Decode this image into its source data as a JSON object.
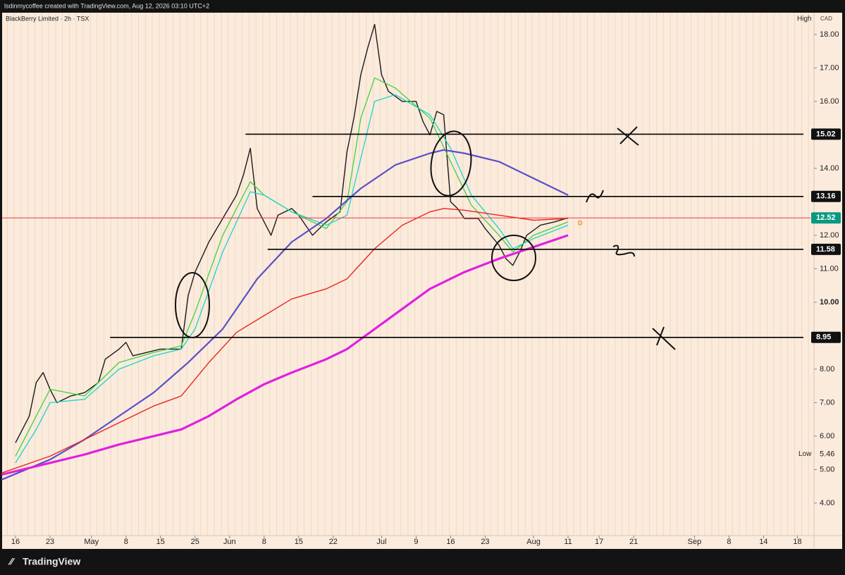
{
  "header": "lsdinmycoffee created with TradingView.com, Aug 12, 2026 03:10 UTC+2",
  "footer": "TradingView",
  "chart_data": {
    "type": "line",
    "title": "BlackBerry Limited · 2h · TSX",
    "currency": "CAD",
    "high_label": "High",
    "low_label": "Low",
    "low": 5.46,
    "marker_label": "D",
    "xlim": [
      -2.24,
      115.6
    ],
    "ylim": [
      3.03,
      18.65
    ],
    "xticks": [
      {
        "value": 0,
        "label": "16"
      },
      {
        "value": 5,
        "label": "23"
      },
      {
        "value": 11,
        "label": "May"
      },
      {
        "value": 16,
        "label": "8"
      },
      {
        "value": 21,
        "label": "15"
      },
      {
        "value": 26,
        "label": "25"
      },
      {
        "value": 31,
        "label": "Jun"
      },
      {
        "value": 36,
        "label": "8"
      },
      {
        "value": 41,
        "label": "15"
      },
      {
        "value": 46,
        "label": "22"
      },
      {
        "value": 53,
        "label": "Jul"
      },
      {
        "value": 58,
        "label": "9"
      },
      {
        "value": 63,
        "label": "16"
      },
      {
        "value": 68,
        "label": "23"
      },
      {
        "value": 75,
        "label": "Aug"
      },
      {
        "value": 80,
        "label": "11"
      },
      {
        "value": 84.5,
        "label": "17"
      },
      {
        "value": 89.5,
        "label": "21"
      },
      {
        "value": 98.3,
        "label": "Sep"
      },
      {
        "value": 103.3,
        "label": "8"
      },
      {
        "value": 108.3,
        "label": "14"
      },
      {
        "value": 113.2,
        "label": "18"
      }
    ],
    "yticks": [
      {
        "value": 4,
        "label": "4.00"
      },
      {
        "value": 5,
        "label": "5.00"
      },
      {
        "value": 6,
        "label": "6.00"
      },
      {
        "value": 7,
        "label": "7.00"
      },
      {
        "value": 8,
        "label": "8.00"
      },
      {
        "value": 10,
        "label": "10.00"
      },
      {
        "value": 11,
        "label": "11.00"
      },
      {
        "value": 12,
        "label": "12.00"
      },
      {
        "value": 14,
        "label": "14.00"
      },
      {
        "value": 16,
        "label": "16.00"
      },
      {
        "value": 17,
        "label": "17.00"
      },
      {
        "value": 18,
        "label": "18.00"
      }
    ],
    "series": [
      {
        "color": "#1a1a1a",
        "width": 1.4,
        "x": [
          0,
          2,
          3,
          4,
          5,
          6,
          8,
          10,
          12,
          13,
          15,
          16,
          17,
          19,
          21,
          23,
          24,
          25,
          26,
          28,
          30,
          32,
          33,
          34,
          35,
          36,
          37,
          38,
          40,
          41,
          43,
          45,
          47,
          48,
          49,
          50,
          51,
          52,
          53,
          54,
          56,
          58,
          59,
          60,
          61,
          62,
          63,
          64,
          65,
          67,
          68,
          70,
          71,
          72,
          73,
          74,
          76,
          78,
          80
        ],
        "values": [
          5.8,
          6.6,
          7.6,
          7.9,
          7.4,
          7.0,
          7.2,
          7.3,
          7.6,
          8.3,
          8.6,
          8.8,
          8.4,
          8.5,
          8.6,
          8.6,
          8.6,
          10.2,
          10.9,
          11.8,
          12.5,
          13.2,
          13.8,
          14.6,
          12.8,
          12.4,
          12.0,
          12.6,
          12.8,
          12.6,
          12.0,
          12.4,
          12.7,
          14.5,
          15.5,
          16.8,
          17.6,
          18.3,
          16.8,
          16.3,
          16.0,
          16.0,
          15.4,
          15.0,
          15.7,
          15.6,
          13.0,
          12.8,
          12.5,
          12.5,
          12.2,
          11.7,
          11.3,
          11.1,
          11.5,
          12.0,
          12.3,
          12.4,
          12.52
        ]
      },
      {
        "color": "#3fd23f",
        "width": 1.3,
        "x": [
          0,
          3,
          5,
          10,
          15,
          20,
          24,
          26,
          30,
          34,
          36,
          40,
          45,
          48,
          50,
          52,
          55,
          60,
          63,
          66,
          70,
          72,
          75,
          80
        ],
        "values": [
          5.4,
          6.6,
          7.4,
          7.2,
          8.2,
          8.5,
          8.7,
          9.7,
          12.0,
          13.6,
          13.2,
          12.7,
          12.2,
          13.0,
          15.5,
          16.7,
          16.4,
          15.5,
          14.2,
          12.9,
          12.0,
          11.5,
          12.0,
          12.4
        ]
      },
      {
        "color": "#19d6c8",
        "width": 1.3,
        "x": [
          0,
          3,
          5,
          10,
          15,
          20,
          24,
          26,
          30,
          34,
          36,
          40,
          45,
          48,
          50,
          52,
          55,
          60,
          63,
          66,
          70,
          72,
          75,
          80
        ],
        "values": [
          5.2,
          6.2,
          7.0,
          7.1,
          8.0,
          8.4,
          8.6,
          9.2,
          11.5,
          13.3,
          13.2,
          12.7,
          12.3,
          12.6,
          14.3,
          16.0,
          16.2,
          15.6,
          14.6,
          13.2,
          12.2,
          11.6,
          11.9,
          12.3
        ]
      },
      {
        "color": "#5b4fc9",
        "width": 2.2,
        "x": [
          -2,
          5,
          10,
          15,
          20,
          25,
          30,
          35,
          40,
          45,
          50,
          55,
          60,
          62,
          65,
          70,
          75,
          80
        ],
        "values": [
          4.7,
          5.3,
          5.9,
          6.6,
          7.3,
          8.2,
          9.2,
          10.7,
          11.8,
          12.5,
          13.4,
          14.1,
          14.45,
          14.55,
          14.45,
          14.2,
          13.7,
          13.2
        ]
      },
      {
        "color": "#e8261e",
        "width": 1.4,
        "x": [
          -2,
          5,
          10,
          15,
          20,
          24,
          28,
          32,
          36,
          40,
          45,
          48,
          52,
          56,
          60,
          62,
          65,
          70,
          75,
          80
        ],
        "values": [
          4.9,
          5.4,
          5.9,
          6.4,
          6.9,
          7.2,
          8.2,
          9.1,
          9.6,
          10.1,
          10.4,
          10.7,
          11.6,
          12.3,
          12.7,
          12.8,
          12.75,
          12.6,
          12.45,
          12.5
        ]
      },
      {
        "color": "#e020e0",
        "width": 3.2,
        "x": [
          -2,
          5,
          10,
          15,
          20,
          24,
          28,
          32,
          36,
          40,
          45,
          48,
          52,
          56,
          60,
          65,
          70,
          75,
          80
        ],
        "values": [
          4.85,
          5.2,
          5.45,
          5.75,
          6.0,
          6.2,
          6.6,
          7.1,
          7.55,
          7.9,
          8.3,
          8.6,
          9.2,
          9.8,
          10.4,
          10.9,
          11.3,
          11.65,
          12.0
        ]
      }
    ],
    "levels": [
      {
        "value": 15.02,
        "start": 33.3
      },
      {
        "value": 13.16,
        "start": 43
      },
      {
        "value": 11.58,
        "start": 36.5
      },
      {
        "value": 8.95,
        "start": 13.7
      }
    ],
    "last_price": 12.52,
    "last_price_color": "#f23645",
    "last_label_color": "#089981"
  }
}
